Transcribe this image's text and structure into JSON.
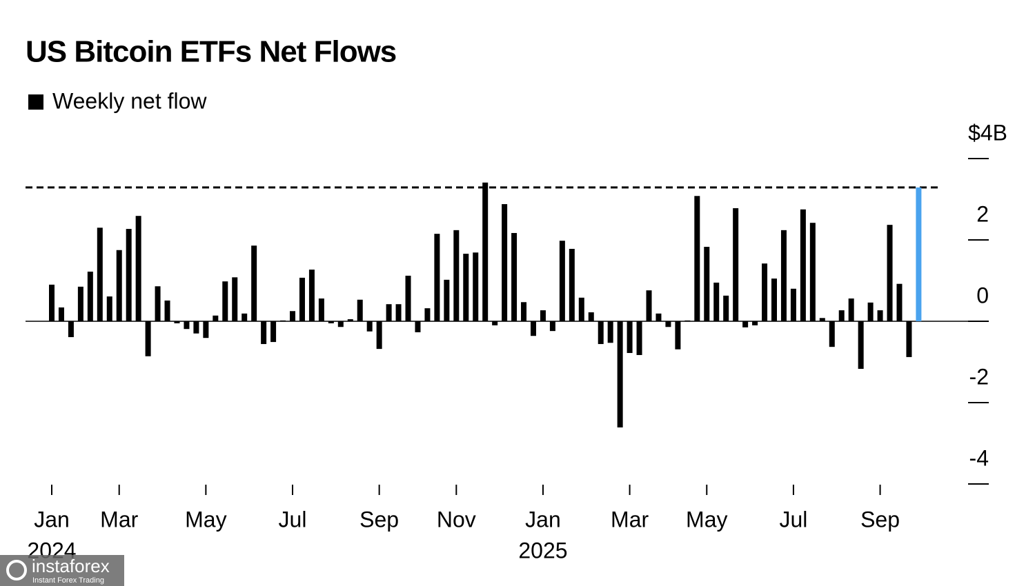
{
  "chart_data": {
    "type": "bar",
    "title": "US Bitcoin ETFs Net Flows",
    "categories": [
      "Jan",
      null,
      null,
      null,
      null,
      null,
      null,
      "Mar",
      null,
      null,
      null,
      null,
      null,
      null,
      null,
      null,
      "May",
      null,
      null,
      null,
      null,
      null,
      null,
      null,
      null,
      "Jul",
      null,
      null,
      null,
      null,
      null,
      null,
      null,
      null,
      "Sep",
      null,
      null,
      null,
      null,
      null,
      null,
      null,
      "Nov",
      null,
      null,
      null,
      null,
      null,
      null,
      null,
      null,
      "Jan",
      null,
      null,
      null,
      null,
      null,
      null,
      null,
      null,
      "Mar",
      null,
      null,
      null,
      null,
      null,
      null,
      null,
      "May",
      null,
      null,
      null,
      null,
      null,
      null,
      null,
      null,
      "Jul",
      null,
      null,
      null,
      null,
      null,
      null,
      null,
      null,
      "Sep",
      null,
      null,
      null,
      null
    ],
    "x_year_labels": [
      "2024",
      null,
      null,
      null,
      null,
      null,
      null,
      null,
      null,
      null,
      null,
      null,
      null,
      null,
      null,
      null,
      null,
      null,
      null,
      null,
      null,
      null,
      null,
      null,
      null,
      null,
      null,
      null,
      null,
      null,
      null,
      null,
      null,
      null,
      null,
      null,
      null,
      null,
      null,
      null,
      null,
      null,
      null,
      null,
      null,
      null,
      null,
      null,
      null,
      null,
      null,
      "2025",
      null,
      null,
      null,
      null,
      null,
      null,
      null,
      null,
      null,
      null,
      null,
      null,
      null,
      null,
      null,
      null,
      null,
      null,
      null,
      null,
      null,
      null,
      null,
      null,
      null,
      null,
      null,
      null,
      null,
      null,
      null,
      null,
      null,
      null,
      null,
      null,
      null,
      null,
      null
    ],
    "series": [
      {
        "name": "Weekly net flow",
        "color": "#000000",
        "values": [
          0.9,
          0.34,
          -0.39,
          0.85,
          1.22,
          2.3,
          0.61,
          1.75,
          2.27,
          2.59,
          -0.86,
          0.86,
          0.51,
          -0.05,
          -0.19,
          -0.3,
          -0.41,
          0.14,
          0.98,
          1.08,
          0.19,
          1.86,
          -0.56,
          -0.51,
          0.02,
          0.25,
          1.07,
          1.27,
          0.56,
          -0.05,
          -0.14,
          0.05,
          0.53,
          -0.25,
          -0.68,
          0.42,
          0.42,
          1.12,
          -0.27,
          0.32,
          2.15,
          1.02,
          2.24,
          1.66,
          1.69,
          3.41,
          -0.1,
          2.88,
          2.17,
          0.47,
          -0.36,
          0.27,
          -0.24,
          1.98,
          1.78,
          0.58,
          0.22,
          -0.56,
          -0.53,
          -2.61,
          -0.78,
          -0.83,
          0.76,
          0.19,
          -0.14,
          -0.69,
          0.02,
          3.08,
          1.83,
          0.95,
          0.63,
          2.78,
          -0.15,
          -0.1,
          1.42,
          1.05,
          2.24,
          0.8,
          2.75,
          2.42,
          0.08,
          -0.63,
          0.27,
          0.56,
          -1.17,
          0.46,
          0.27,
          2.37,
          0.92,
          -0.88,
          3.29
        ]
      }
    ],
    "highlight_color": "#4aa3ee",
    "reference_line": 3.29,
    "ylim": [
      -4,
      4
    ],
    "yticks": [
      -4,
      -2,
      0,
      2,
      {
        "value": 4,
        "label": "$4B"
      }
    ],
    "watermark": {
      "brand": "instaforex",
      "tagline": "Instant Forex Trading"
    }
  }
}
